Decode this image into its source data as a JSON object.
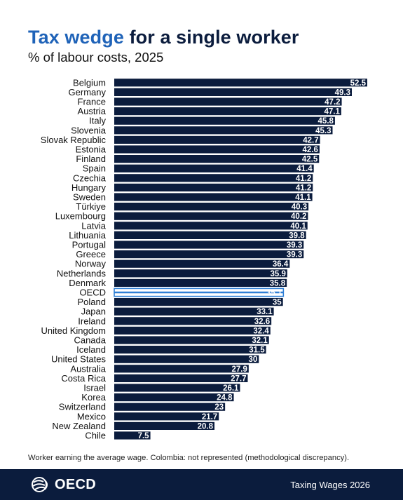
{
  "header": {
    "title_accent": "Tax wedge",
    "title_rest": "for a single worker",
    "subtitle": "% of labour costs, 2025"
  },
  "note": "Worker earning the average wage. Colombia: not represented (methodological discrepancy).",
  "footer": {
    "logo_text": "OECD",
    "publication": "Taxing Wages 2026"
  },
  "colors": {
    "bar": "#0b1c3d",
    "highlight": "#2e7fd6",
    "title_accent": "#1f63b8",
    "footer_bg": "#0b1c3d"
  },
  "chart_data": {
    "type": "bar",
    "orientation": "horizontal",
    "highlight": "OECD",
    "categories": [
      "Belgium",
      "Germany",
      "France",
      "Austria",
      "Italy",
      "Slovenia",
      "Slovak Republic",
      "Estonia",
      "Finland",
      "Spain",
      "Czechia",
      "Hungary",
      "Sweden",
      "Türkiye",
      "Luxembourg",
      "Latvia",
      "Lithuania",
      "Portugal",
      "Greece",
      "Norway",
      "Netherlands",
      "Denmark",
      "OECD",
      "Poland",
      "Japan",
      "Ireland",
      "United Kingdom",
      "Canada",
      "Iceland",
      "United States",
      "Australia",
      "Costa Rica",
      "Israel",
      "Korea",
      "Switzerland",
      "Mexico",
      "New Zealand",
      "Chile"
    ],
    "values": [
      52.5,
      49.3,
      47.2,
      47.1,
      45.8,
      45.3,
      42.7,
      42.6,
      42.5,
      41.4,
      41.2,
      41.2,
      41.1,
      40.3,
      40.2,
      40.1,
      39.8,
      39.3,
      39.3,
      36.4,
      35.9,
      35.8,
      35.1,
      35,
      33.1,
      32.6,
      32.4,
      32.1,
      31.5,
      30,
      27.9,
      27.7,
      26.1,
      24.8,
      23,
      21.7,
      20.8,
      7.5
    ],
    "labels": [
      "52.5",
      "49.3",
      "47.2",
      "47.1",
      "45.8",
      "45.3",
      "42.7",
      "42.6",
      "42.5",
      "41.4",
      "41.2",
      "41.2",
      "41.1",
      "40.3",
      "40.2",
      "40.1",
      "39.8",
      "39.3",
      "39.3",
      "36.4",
      "35.9",
      "35.8",
      "35.1",
      "35",
      "33.1",
      "32.6",
      "32.4",
      "32.1",
      "31.5",
      "30",
      "27.9",
      "27.7",
      "26.1",
      "24.8",
      "23",
      "21.7",
      "20.8",
      "7.5"
    ],
    "xlim": [
      0,
      52.5
    ],
    "grid": false,
    "legend": "none"
  }
}
